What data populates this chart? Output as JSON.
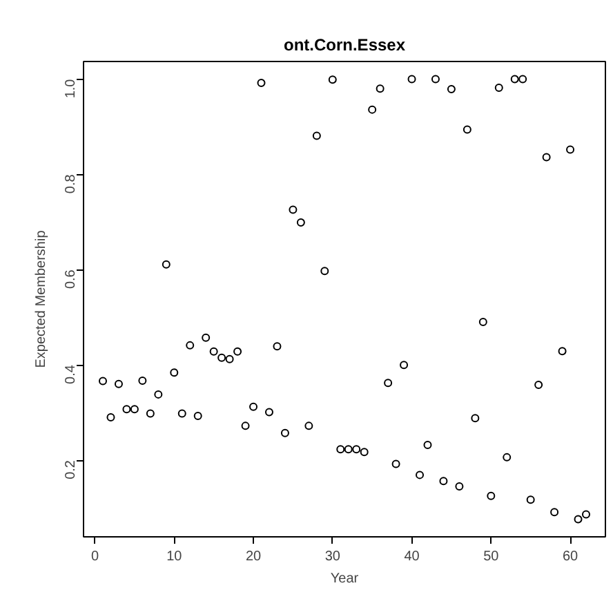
{
  "chart_data": {
    "type": "scatter",
    "title": "ont.Corn.Essex",
    "xlabel": "Year",
    "ylabel": "Expected Membership",
    "x": [
      1,
      2,
      3,
      4,
      5,
      6,
      7,
      8,
      9,
      10,
      11,
      12,
      13,
      14,
      15,
      16,
      17,
      18,
      19,
      20,
      21,
      22,
      23,
      24,
      25,
      26,
      27,
      28,
      29,
      30,
      31,
      32,
      33,
      34,
      35,
      36,
      37,
      38,
      39,
      40,
      41,
      42,
      43,
      44,
      45,
      46,
      47,
      48,
      49,
      50,
      51,
      52,
      53,
      54,
      55,
      56,
      57,
      58,
      59,
      60,
      61,
      62
    ],
    "series": [
      {
        "color": "#000000",
        "values": [
          0.366,
          0.29,
          0.36,
          0.307,
          0.307,
          0.367,
          0.298,
          0.338,
          0.611,
          0.384,
          0.298,
          0.441,
          0.293,
          0.457,
          0.428,
          0.415,
          0.412,
          0.428,
          0.272,
          0.312,
          0.992,
          0.301,
          0.439,
          0.257,
          0.726,
          0.699,
          0.272,
          0.881,
          0.597,
          0.999,
          0.223,
          0.223,
          0.223,
          0.217,
          0.936,
          0.98,
          0.362,
          0.192,
          0.4,
          1.0,
          0.169,
          0.232,
          1.0,
          0.156,
          0.979,
          0.145,
          0.894,
          0.288,
          0.49,
          0.125,
          0.982,
          0.206,
          1.0,
          1.0,
          0.117,
          0.358,
          0.836,
          0.091,
          0.429,
          0.852,
          0.076,
          0.086
        ]
      }
    ],
    "xlim": [
      -1.44,
      64.44
    ],
    "ylim": [
      0.039,
      1.037
    ],
    "xticks": [
      0,
      10,
      20,
      30,
      40,
      50,
      60
    ],
    "yticks": [
      {
        "value": 0.2,
        "label": "0.2"
      },
      {
        "value": 0.4,
        "label": "0.4"
      },
      {
        "value": 0.6,
        "label": "0.6"
      },
      {
        "value": 0.8,
        "label": "0.8"
      },
      {
        "value": 1.0,
        "label": "1.0"
      }
    ],
    "marker": "circle"
  }
}
